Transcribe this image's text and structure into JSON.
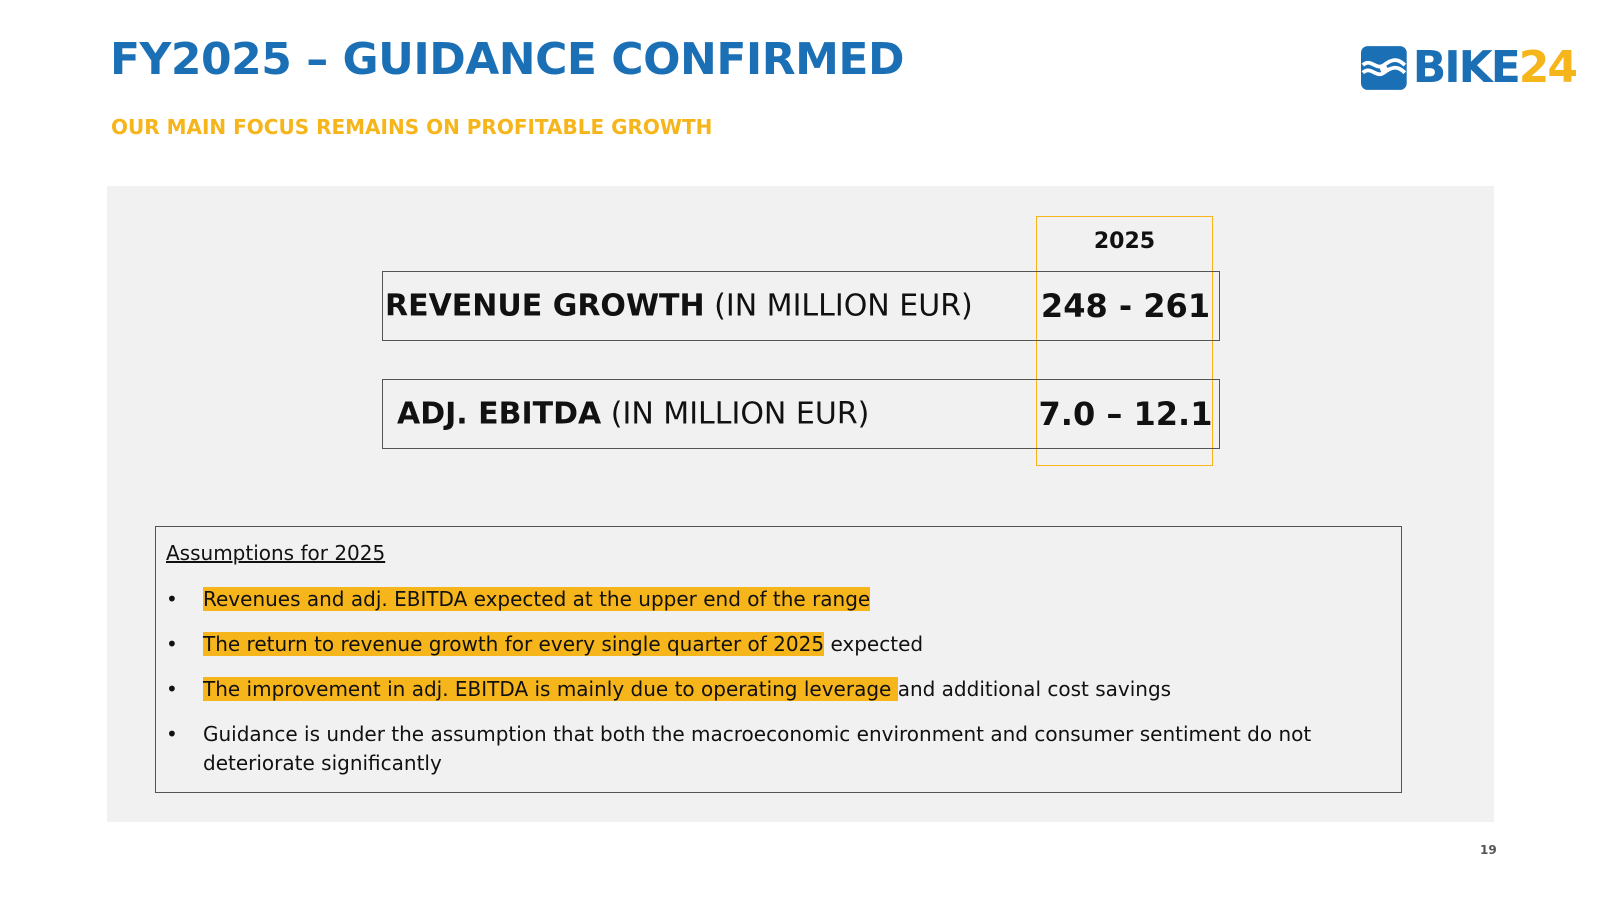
{
  "header": {
    "title": "FY2025 – GUIDANCE CONFIRMED",
    "subtitle": "OUR MAIN FOCUS REMAINS ON PROFITABLE GROWTH",
    "logo_text_a": "BIKE",
    "logo_text_b": "24"
  },
  "colors": {
    "brand_blue": "#1b6fb5",
    "brand_yellow": "#f6b51b",
    "panel_bg": "#f1f1f1"
  },
  "guidance": {
    "year": "2025",
    "rows": [
      {
        "label": "REVENUE GROWTH",
        "unit": "(IN MILLION EUR)",
        "value": "248 - 261"
      },
      {
        "label": "ADJ. EBITDA",
        "unit": "(IN MILLION EUR)",
        "value": "7.0 – 12.1"
      }
    ]
  },
  "assumptions": {
    "title": "Assumptions for 2025",
    "bullet": "•",
    "items": [
      {
        "highlight": "Revenues and adj. EBITDA expected at the upper end of the range",
        "rest": ""
      },
      {
        "highlight": "The return to revenue growth for every single quarter of 2025",
        "rest": " expected"
      },
      {
        "highlight": "The improvement in adj. EBITDA is mainly due to operating leverage ",
        "rest": "and additional cost savings"
      },
      {
        "highlight": "",
        "rest": "Guidance is under the assumption that both the macroeconomic environment and consumer sentiment do not deteriorate significantly"
      }
    ]
  },
  "footer": {
    "page_number": "19"
  }
}
